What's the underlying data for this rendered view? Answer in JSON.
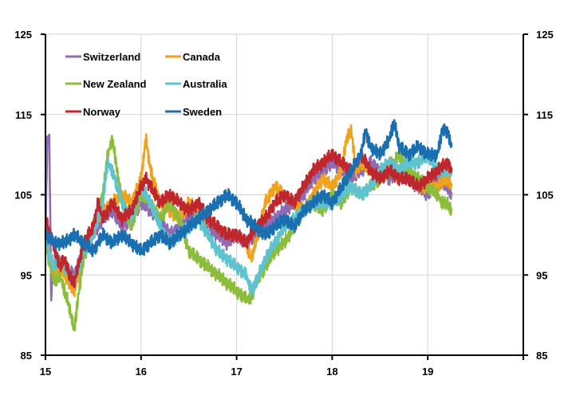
{
  "chart_data": {
    "type": "line",
    "title": "",
    "xlabel": "",
    "ylabel": "",
    "xlim": [
      15,
      20
    ],
    "ylim": [
      85,
      125
    ],
    "x_ticks": [
      15,
      16,
      17,
      18,
      19
    ],
    "x_tick_labels": [
      "15",
      "16",
      "17",
      "18",
      "19"
    ],
    "y_ticks": [
      85,
      95,
      105,
      115,
      125
    ],
    "y_tick_labels": [
      "85",
      "95",
      "105",
      "115",
      "125"
    ],
    "grid": true,
    "legend_position": "top-left",
    "series": [
      {
        "name": "Switzerland",
        "color": "#8e6bb3",
        "x": [
          15.0,
          15.02,
          15.04,
          15.06,
          15.08,
          15.12,
          15.2,
          15.3,
          15.4,
          15.5,
          15.6,
          15.7,
          15.8,
          15.9,
          16.0,
          16.1,
          16.2,
          16.3,
          16.4,
          16.5,
          16.6,
          16.7,
          16.8,
          16.9,
          17.0,
          17.1,
          17.2,
          17.3,
          17.4,
          17.5,
          17.6,
          17.7,
          17.8,
          17.9,
          18.0,
          18.1,
          18.2,
          18.3,
          18.4,
          18.5,
          18.6,
          18.7,
          18.8,
          18.9,
          19.0,
          19.1,
          19.2,
          19.25
        ],
        "values": [
          100,
          112,
          112,
          92,
          96,
          97,
          96,
          95,
          98,
          100,
          102,
          103,
          101,
          102,
          104,
          103,
          102,
          100,
          101,
          102,
          103,
          101,
          100,
          99,
          100,
          99,
          100,
          101,
          102,
          103,
          104,
          105,
          107,
          108,
          109,
          108,
          107,
          108,
          109,
          108,
          107,
          108,
          107,
          106,
          105,
          107,
          106,
          105
        ]
      },
      {
        "name": "Canada",
        "color": "#f0a21c",
        "x": [
          15.0,
          15.05,
          15.1,
          15.15,
          15.2,
          15.25,
          15.3,
          15.35,
          15.4,
          15.5,
          15.6,
          15.7,
          15.8,
          15.9,
          16.0,
          16.05,
          16.1,
          16.2,
          16.3,
          16.4,
          16.5,
          16.6,
          16.7,
          16.8,
          16.9,
          17.0,
          17.1,
          17.15,
          17.2,
          17.3,
          17.4,
          17.5,
          17.6,
          17.7,
          17.8,
          17.9,
          18.0,
          18.1,
          18.15,
          18.2,
          18.25,
          18.3,
          18.4,
          18.5,
          18.6,
          18.7,
          18.8,
          18.9,
          19.0,
          19.1,
          19.2,
          19.25
        ],
        "values": [
          101,
          97,
          95,
          96,
          95,
          94,
          93,
          95,
          98,
          101,
          103,
          104,
          105,
          104,
          107,
          112,
          108,
          104,
          103,
          102,
          104,
          103,
          102,
          101,
          100,
          100,
          99,
          97,
          99,
          104,
          106,
          105,
          104,
          103,
          105,
          107,
          106,
          108,
          112,
          113,
          108,
          109,
          108,
          107,
          109,
          108,
          107,
          106,
          106,
          106,
          107,
          106
        ]
      },
      {
        "name": "New Zealand",
        "color": "#8cbd3a",
        "x": [
          15.0,
          15.05,
          15.1,
          15.15,
          15.2,
          15.25,
          15.3,
          15.35,
          15.4,
          15.5,
          15.6,
          15.65,
          15.7,
          15.75,
          15.8,
          15.9,
          16.0,
          16.1,
          16.2,
          16.3,
          16.4,
          16.5,
          16.6,
          16.7,
          16.8,
          16.9,
          17.0,
          17.1,
          17.15,
          17.2,
          17.3,
          17.4,
          17.5,
          17.6,
          17.7,
          17.8,
          17.9,
          18.0,
          18.1,
          18.2,
          18.3,
          18.4,
          18.5,
          18.6,
          18.7,
          18.8,
          18.9,
          19.0,
          19.1,
          19.15,
          19.2,
          19.25
        ],
        "values": [
          99,
          96,
          94,
          95,
          93,
          91,
          88,
          93,
          97,
          101,
          105,
          110,
          112,
          108,
          104,
          101,
          105,
          104,
          102,
          104,
          102,
          98,
          97,
          96,
          95,
          94,
          93,
          92,
          92,
          94,
          96,
          98,
          99,
          101,
          103,
          104,
          103,
          105,
          104,
          106,
          105,
          106,
          107,
          108,
          110,
          108,
          107,
          106,
          105,
          104,
          104,
          103
        ]
      },
      {
        "name": "Australia",
        "color": "#5cc3cf",
        "x": [
          15.0,
          15.05,
          15.1,
          15.15,
          15.2,
          15.25,
          15.3,
          15.4,
          15.5,
          15.6,
          15.65,
          15.7,
          15.8,
          15.9,
          16.0,
          16.1,
          16.2,
          16.3,
          16.4,
          16.5,
          16.6,
          16.7,
          16.8,
          16.9,
          17.0,
          17.1,
          17.15,
          17.2,
          17.3,
          17.4,
          17.5,
          17.6,
          17.7,
          17.8,
          17.9,
          18.0,
          18.1,
          18.2,
          18.3,
          18.4,
          18.5,
          18.6,
          18.7,
          18.8,
          18.9,
          19.0,
          19.1,
          19.2,
          19.25
        ],
        "values": [
          100,
          97,
          96,
          97,
          96,
          95,
          94,
          98,
          100,
          104,
          109,
          108,
          104,
          102,
          106,
          104,
          101,
          99,
          100,
          101,
          102,
          100,
          98,
          97,
          96,
          95,
          93,
          94,
          97,
          99,
          101,
          102,
          103,
          104,
          104,
          104,
          105,
          106,
          105,
          106,
          108,
          109,
          108,
          109,
          109,
          110,
          108,
          108,
          108
        ]
      },
      {
        "name": "Norway",
        "color": "#c0272d",
        "x": [
          15.0,
          15.05,
          15.1,
          15.15,
          15.2,
          15.25,
          15.3,
          15.4,
          15.5,
          15.55,
          15.6,
          15.7,
          15.8,
          15.9,
          16.0,
          16.05,
          16.1,
          16.2,
          16.3,
          16.4,
          16.5,
          16.6,
          16.7,
          16.8,
          16.9,
          17.0,
          17.1,
          17.2,
          17.3,
          17.4,
          17.5,
          17.6,
          17.7,
          17.8,
          17.9,
          18.0,
          18.1,
          18.2,
          18.3,
          18.4,
          18.5,
          18.6,
          18.7,
          18.8,
          18.9,
          19.0,
          19.1,
          19.2,
          19.25
        ],
        "values": [
          102,
          100,
          98,
          96,
          97,
          95,
          94,
          99,
          101,
          104,
          102,
          104,
          102,
          103,
          106,
          107,
          106,
          104,
          105,
          104,
          103,
          104,
          102,
          101,
          100,
          100,
          99,
          101,
          102,
          104,
          105,
          104,
          106,
          108,
          109,
          110,
          109,
          108,
          110,
          108,
          107,
          108,
          107,
          107,
          106,
          107,
          108,
          109,
          108
        ]
      },
      {
        "name": "Sweden",
        "color": "#1a6fb0",
        "x": [
          15.0,
          15.1,
          15.2,
          15.3,
          15.4,
          15.5,
          15.6,
          15.7,
          15.8,
          15.9,
          16.0,
          16.1,
          16.2,
          16.3,
          16.4,
          16.5,
          16.6,
          16.7,
          16.8,
          16.9,
          17.0,
          17.1,
          17.2,
          17.3,
          17.4,
          17.5,
          17.6,
          17.7,
          17.8,
          17.9,
          18.0,
          18.1,
          18.2,
          18.3,
          18.35,
          18.4,
          18.5,
          18.6,
          18.65,
          18.7,
          18.8,
          18.9,
          19.0,
          19.1,
          19.15,
          19.2,
          19.25
        ],
        "values": [
          100,
          99,
          99,
          100,
          99,
          98,
          100,
          99,
          100,
          99,
          98,
          99,
          100,
          99,
          100,
          101,
          102,
          103,
          104,
          105,
          104,
          102,
          101,
          100,
          101,
          102,
          101,
          103,
          104,
          105,
          104,
          106,
          108,
          110,
          113,
          111,
          110,
          112,
          114,
          111,
          110,
          111,
          110,
          110,
          113,
          113,
          111
        ]
      }
    ]
  }
}
